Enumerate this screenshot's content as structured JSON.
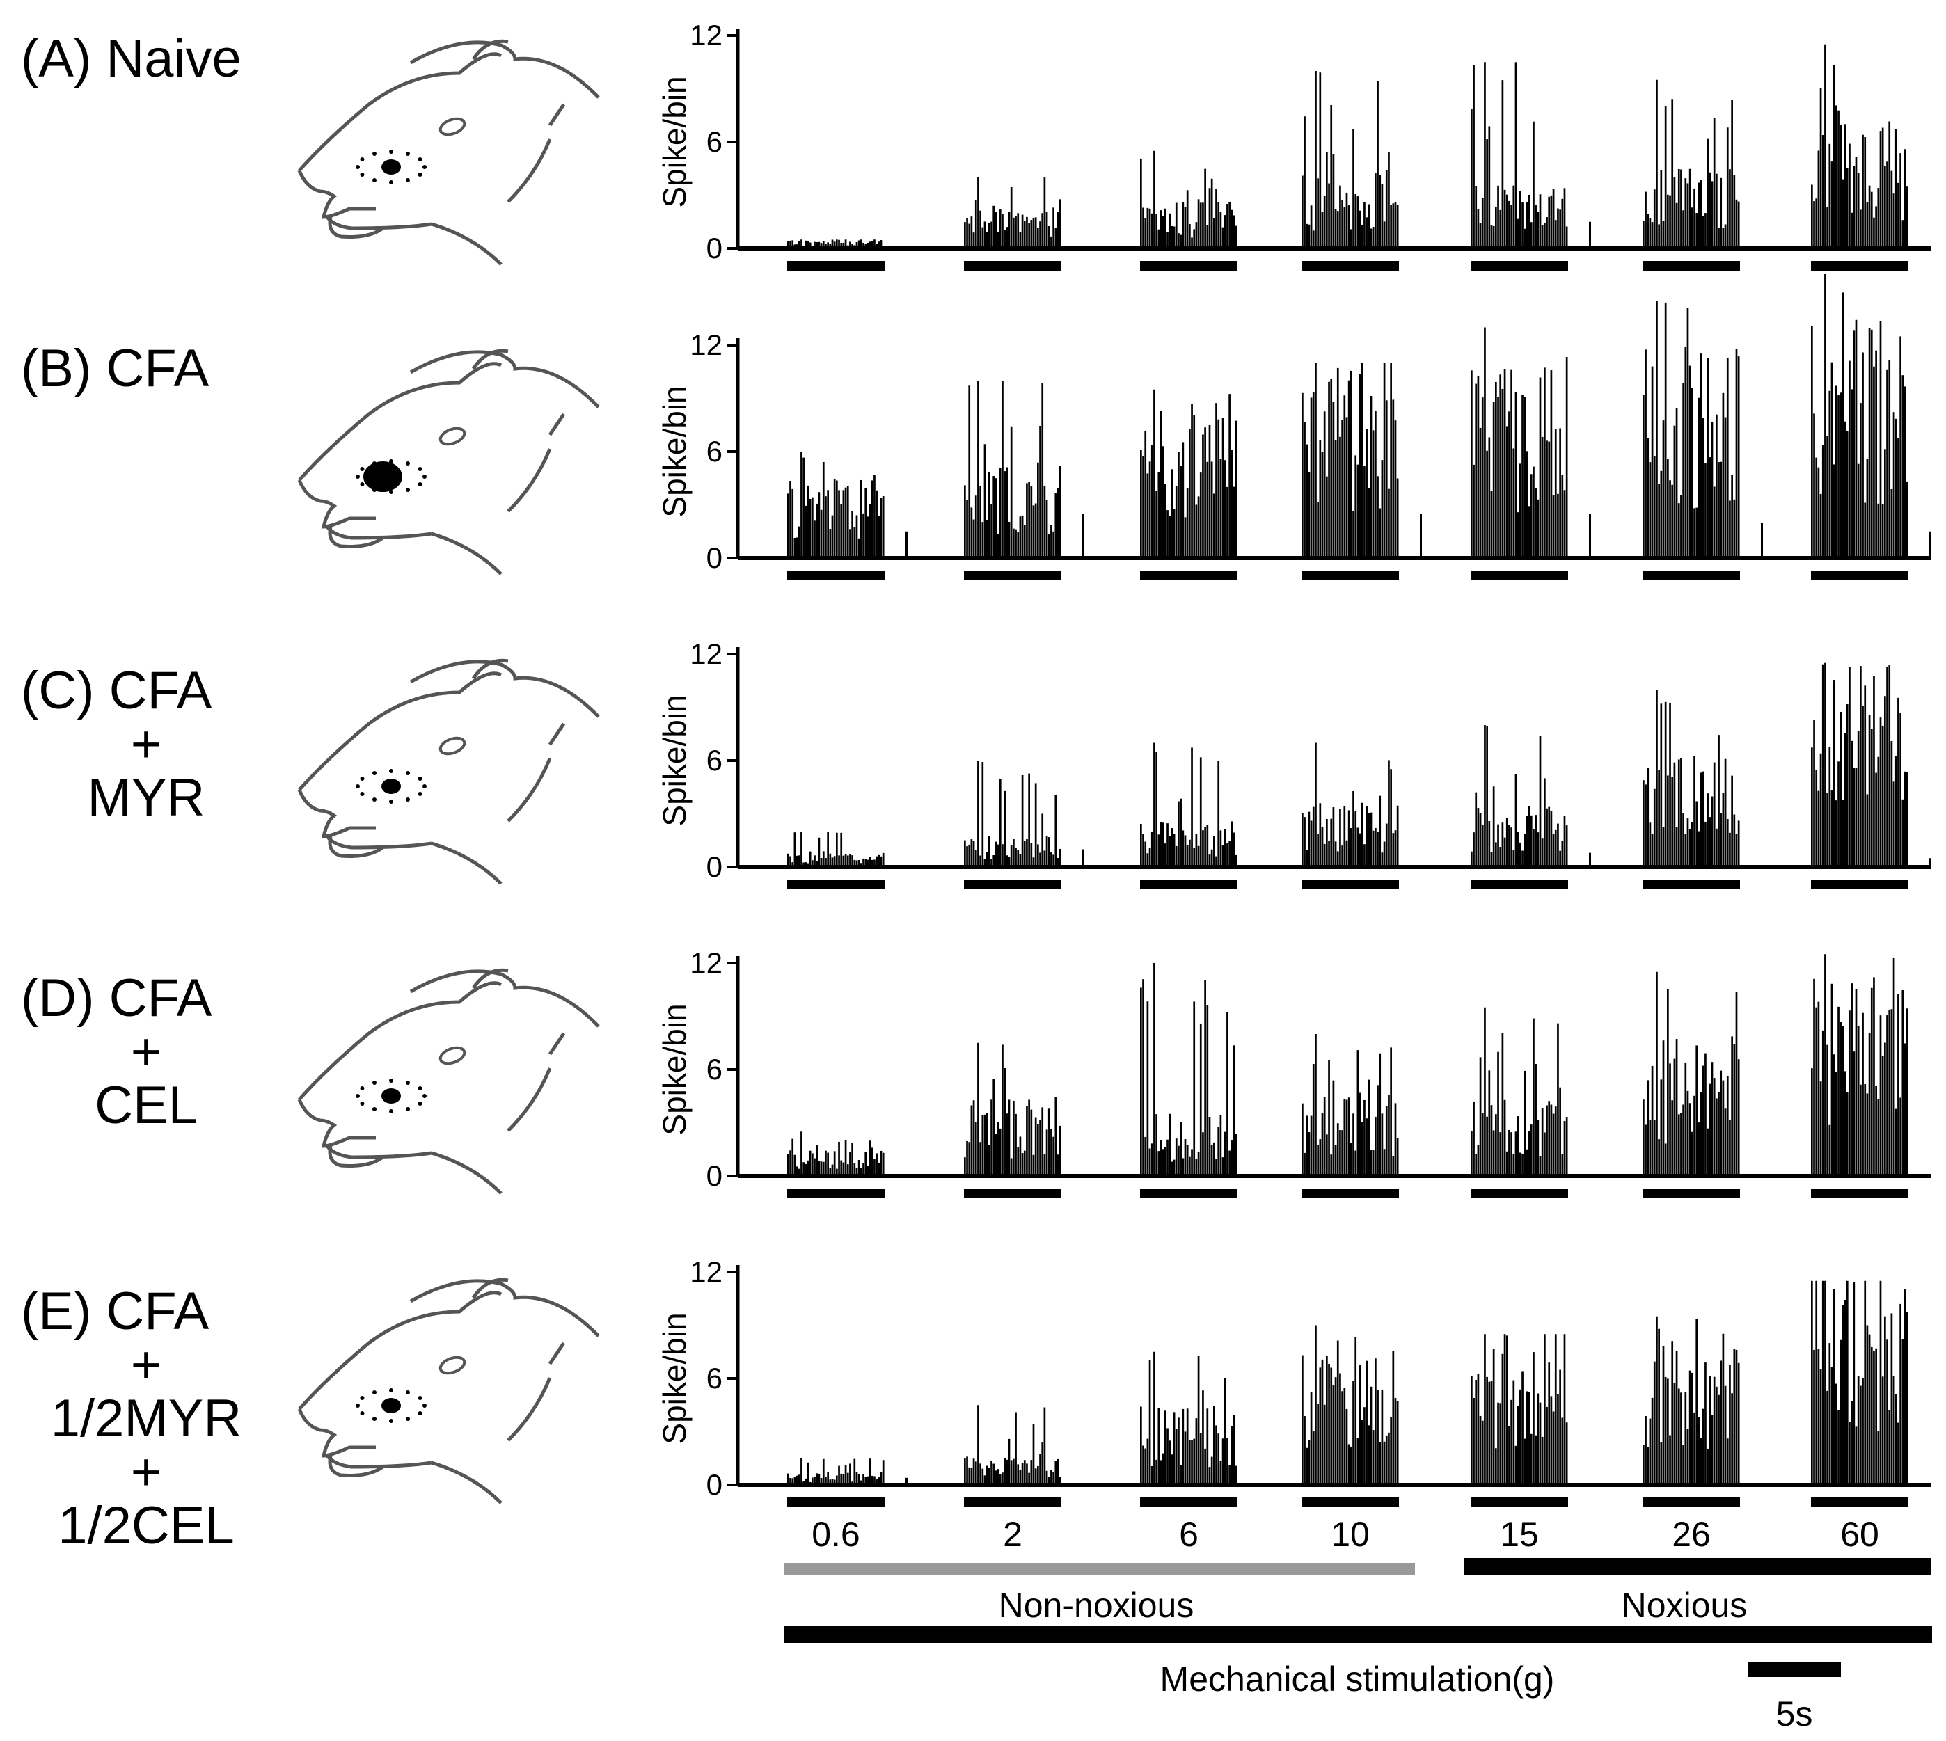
{
  "ylabel": "Spike/bin",
  "y_ticks": [
    "0",
    "6",
    "12"
  ],
  "stimulus_forces": [
    "0.6",
    "2",
    "6",
    "10",
    "15",
    "26",
    "60"
  ],
  "non_noxious_label": "Non-noxious",
  "noxious_label": "Noxious",
  "mechanical_label": "Mechanical stimulation(g)",
  "scale_bar_label": "5s",
  "colors": {
    "non_noxious_bar": "#999999",
    "noxious_bar": "#000000",
    "histogram": "#000000"
  },
  "chart_data": [
    {
      "type": "bar",
      "panel": "(A) Naive",
      "title_lines": [
        "(A) Naive"
      ],
      "ylabel": "Spike/bin",
      "ylim": [
        0,
        12
      ],
      "stimuli_g": [
        0.6,
        2,
        6,
        10,
        15,
        26,
        60
      ],
      "peak_spikes_per_bin": [
        0.5,
        4,
        5.5,
        10,
        10.5,
        9.5,
        11.5
      ],
      "mean_spikes_per_bin": [
        0.3,
        1.2,
        1.5,
        2.5,
        2.0,
        2.5,
        4.0
      ],
      "spont_spikes_per_bin": [
        0,
        0,
        0,
        0,
        1.5,
        0,
        0
      ]
    },
    {
      "type": "bar",
      "panel": "(B) CFA",
      "title_lines": [
        "(B) CFA"
      ],
      "ylabel": "Spike/bin",
      "ylim": [
        0,
        12
      ],
      "stimuli_g": [
        0.6,
        2,
        6,
        10,
        15,
        26,
        60
      ],
      "peak_spikes_per_bin": [
        6,
        10,
        9.5,
        11,
        13,
        14.5,
        16
      ],
      "mean_spikes_per_bin": [
        2.5,
        3.0,
        5.0,
        6.5,
        6.0,
        7.0,
        7.5
      ],
      "spont_spikes_per_bin": [
        1.5,
        2.5,
        0,
        2.5,
        2.5,
        2.0,
        1.5
      ]
    },
    {
      "type": "bar",
      "panel": "(C) CFA + MYR",
      "title_lines": [
        "(C) CFA",
        "+",
        "MYR"
      ],
      "ylabel": "Spike/bin",
      "ylim": [
        0,
        12
      ],
      "stimuli_g": [
        0.6,
        2,
        6,
        10,
        15,
        26,
        60
      ],
      "peak_spikes_per_bin": [
        2,
        6,
        7,
        7,
        8,
        10,
        11.5
      ],
      "mean_spikes_per_bin": [
        0.5,
        1.0,
        1.5,
        2.0,
        2.0,
        3.5,
        6.5
      ],
      "spont_spikes_per_bin": [
        0,
        1.0,
        0,
        0,
        0.8,
        0,
        0.5
      ]
    },
    {
      "type": "bar",
      "panel": "(D) CFA + CEL",
      "title_lines": [
        "(D) CFA",
        "+",
        "CEL"
      ],
      "ylabel": "Spike/bin",
      "ylim": [
        0,
        12
      ],
      "stimuli_g": [
        0.6,
        2,
        6,
        10,
        15,
        26,
        60
      ],
      "peak_spikes_per_bin": [
        2.5,
        7.5,
        12,
        8,
        9.5,
        11.5,
        12.5
      ],
      "mean_spikes_per_bin": [
        0.8,
        2.5,
        2.0,
        2.5,
        2.5,
        4.5,
        6.5
      ],
      "spont_spikes_per_bin": [
        0,
        0,
        0,
        0,
        0,
        0,
        0
      ]
    },
    {
      "type": "bar",
      "panel": "(E) CFA + 1/2MYR + 1/2CEL",
      "title_lines": [
        "(E) CFA",
        "+",
        "1/2MYR",
        "+",
        "1/2CEL"
      ],
      "ylabel": "Spike/bin",
      "ylim": [
        0,
        12
      ],
      "stimuli_g": [
        0.6,
        2,
        6,
        10,
        15,
        26,
        60
      ],
      "peak_spikes_per_bin": [
        1.5,
        4.5,
        7.5,
        9,
        8.5,
        9.5,
        11.5
      ],
      "mean_spikes_per_bin": [
        0.4,
        1.0,
        2.5,
        4.5,
        5.0,
        5.0,
        7.5
      ],
      "spont_spikes_per_bin": [
        0.4,
        0,
        0,
        0,
        0,
        0,
        0
      ]
    }
  ]
}
